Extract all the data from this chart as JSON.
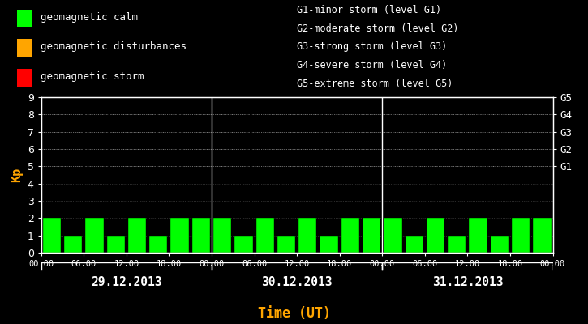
{
  "background_color": "#000000",
  "plot_bg_color": "#000000",
  "bar_color_calm": "#00ff00",
  "bar_color_disturb": "#ffa500",
  "bar_color_storm": "#ff0000",
  "text_color": "#ffffff",
  "orange_color": "#ffa500",
  "title_x_label": "Time (UT)",
  "ylabel": "Kp",
  "ylim": [
    0,
    9
  ],
  "yticks": [
    0,
    1,
    2,
    3,
    4,
    5,
    6,
    7,
    8,
    9
  ],
  "legend_items": [
    {
      "label": "geomagnetic calm",
      "color": "#00ff00"
    },
    {
      "label": "geomagnetic disturbances",
      "color": "#ffa500"
    },
    {
      "label": "geomagnetic storm",
      "color": "#ff0000"
    }
  ],
  "storm_legend_lines": [
    "G1-minor storm (level G1)",
    "G2-moderate storm (level G2)",
    "G3-strong storm (level G3)",
    "G4-severe storm (level G4)",
    "G5-extreme storm (level G5)"
  ],
  "days": [
    "29.12.2013",
    "30.12.2013",
    "31.12.2013"
  ],
  "kp_day1": [
    2,
    1,
    2,
    1,
    2,
    1,
    2,
    2
  ],
  "kp_day2": [
    2,
    1,
    2,
    1,
    2,
    1,
    2,
    2
  ],
  "kp_day3": [
    2,
    1,
    2,
    1,
    2,
    1,
    2,
    2
  ],
  "xtick_labels": [
    "00:00",
    "06:00",
    "12:00",
    "18:00",
    "00:00",
    "06:00",
    "12:00",
    "18:00",
    "00:00",
    "06:00",
    "12:00",
    "18:00",
    "00:00"
  ],
  "figsize": [
    7.25,
    4.0
  ],
  "dpi": 100
}
